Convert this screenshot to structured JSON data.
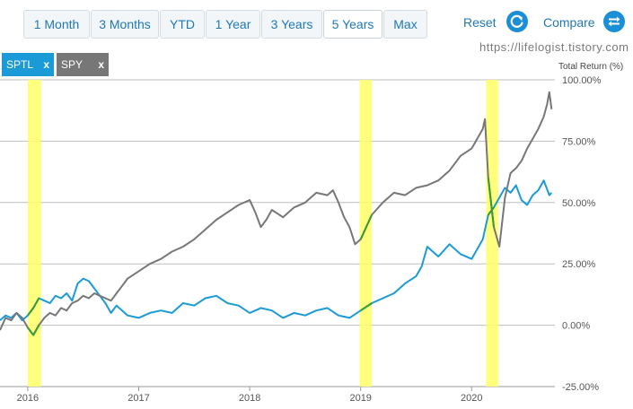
{
  "toolbar": {
    "ranges": [
      "1 Month",
      "3 Months",
      "YTD",
      "1 Year",
      "3 Years",
      "5 Years",
      "Max"
    ],
    "active_range": "5 Years",
    "reset_label": "Reset",
    "compare_label": "Compare",
    "reset_icon": "refresh-icon",
    "compare_icon": "swap-arrows-icon"
  },
  "tags": [
    {
      "label": "SPTL",
      "remove": "x",
      "color": "#1a9bd7"
    },
    {
      "label": "SPY",
      "remove": "x",
      "color": "#777777"
    }
  ],
  "watermark": "https://lifelogist.tistory.com",
  "chart_data": {
    "type": "line",
    "ylabel": "Total Return (%)",
    "ylim": [
      -25,
      100
    ],
    "x_domain": [
      2015.75,
      2020.75
    ],
    "yticks": [
      {
        "value": 100,
        "label": "100.00%"
      },
      {
        "value": 75,
        "label": "75.00%"
      },
      {
        "value": 50,
        "label": "50.00%"
      },
      {
        "value": 25,
        "label": "25.00%"
      },
      {
        "value": 0,
        "label": "0.00%"
      },
      {
        "value": -25,
        "label": "-25.00%"
      }
    ],
    "xticks": [
      {
        "value": 2016,
        "label": "2016"
      },
      {
        "value": 2017,
        "label": "2017"
      },
      {
        "value": 2018,
        "label": "2018"
      },
      {
        "value": 2019,
        "label": "2019"
      },
      {
        "value": 2020,
        "label": "2020"
      }
    ],
    "highlights": [
      [
        2016.0,
        2016.12
      ],
      [
        2018.99,
        2019.1
      ],
      [
        2020.13,
        2020.24
      ]
    ],
    "highlight_color": "#ffff66",
    "colors": {
      "SPTL": "#1a9bd7",
      "SPY": "#777777",
      "overlap": "#3a9a3a"
    },
    "series": [
      {
        "name": "SPTL",
        "x": [
          2015.75,
          2015.8,
          2015.85,
          2015.9,
          2015.95,
          2016.0,
          2016.05,
          2016.1,
          2016.15,
          2016.2,
          2016.25,
          2016.3,
          2016.35,
          2016.4,
          2016.45,
          2016.5,
          2016.55,
          2016.6,
          2016.65,
          2016.7,
          2016.75,
          2016.8,
          2016.85,
          2016.9,
          2017.0,
          2017.1,
          2017.2,
          2017.3,
          2017.4,
          2017.5,
          2017.6,
          2017.7,
          2017.8,
          2017.9,
          2018.0,
          2018.1,
          2018.2,
          2018.3,
          2018.4,
          2018.5,
          2018.6,
          2018.7,
          2018.8,
          2018.9,
          2019.0,
          2019.1,
          2019.2,
          2019.3,
          2019.4,
          2019.5,
          2019.55,
          2019.6,
          2019.65,
          2019.7,
          2019.8,
          2019.9,
          2020.0,
          2020.1,
          2020.15,
          2020.2,
          2020.25,
          2020.3,
          2020.35,
          2020.4,
          2020.45,
          2020.5,
          2020.55,
          2020.6,
          2020.65,
          2020.7,
          2020.72
        ],
        "values": [
          2,
          4,
          3,
          5,
          2,
          4,
          7,
          11,
          10,
          9,
          12,
          11,
          13,
          10,
          17,
          19,
          18,
          15,
          12,
          9,
          5,
          8,
          6,
          4,
          3,
          5,
          6,
          5,
          9,
          8,
          11,
          12,
          9,
          8,
          5,
          7,
          6,
          3,
          5,
          4,
          6,
          7,
          4,
          3,
          6,
          9,
          11,
          13,
          17,
          20,
          24,
          32,
          30,
          28,
          33,
          29,
          27,
          35,
          45,
          48,
          52,
          56,
          54,
          57,
          51,
          49,
          53,
          55,
          59,
          53,
          54
        ]
      },
      {
        "name": "SPY",
        "x": [
          2015.75,
          2015.8,
          2015.85,
          2015.9,
          2015.95,
          2016.0,
          2016.05,
          2016.1,
          2016.15,
          2016.2,
          2016.25,
          2016.3,
          2016.35,
          2016.4,
          2016.45,
          2016.5,
          2016.55,
          2016.6,
          2016.65,
          2016.7,
          2016.75,
          2016.8,
          2016.85,
          2016.9,
          2017.0,
          2017.1,
          2017.2,
          2017.3,
          2017.4,
          2017.5,
          2017.6,
          2017.7,
          2017.8,
          2017.9,
          2018.0,
          2018.05,
          2018.1,
          2018.15,
          2018.2,
          2018.3,
          2018.4,
          2018.5,
          2018.6,
          2018.7,
          2018.75,
          2018.8,
          2018.85,
          2018.9,
          2018.95,
          2019.0,
          2019.05,
          2019.1,
          2019.2,
          2019.3,
          2019.4,
          2019.5,
          2019.6,
          2019.7,
          2019.8,
          2019.9,
          2020.0,
          2020.1,
          2020.12,
          2020.15,
          2020.2,
          2020.25,
          2020.3,
          2020.35,
          2020.4,
          2020.45,
          2020.5,
          2020.55,
          2020.6,
          2020.65,
          2020.68,
          2020.7,
          2020.72
        ],
        "values": [
          -2,
          3,
          2,
          5,
          3,
          -1,
          -4,
          0,
          3,
          5,
          4,
          7,
          6,
          9,
          10,
          12,
          11,
          13,
          12,
          11,
          10,
          13,
          16,
          19,
          22,
          25,
          27,
          30,
          32,
          35,
          39,
          43,
          46,
          49,
          51,
          46,
          40,
          43,
          47,
          44,
          48,
          50,
          54,
          53,
          55,
          50,
          44,
          40,
          33,
          35,
          40,
          45,
          50,
          54,
          53,
          56,
          57,
          59,
          63,
          69,
          72,
          80,
          84,
          60,
          40,
          32,
          52,
          62,
          64,
          67,
          72,
          76,
          80,
          85,
          90,
          95,
          88
        ]
      }
    ]
  }
}
